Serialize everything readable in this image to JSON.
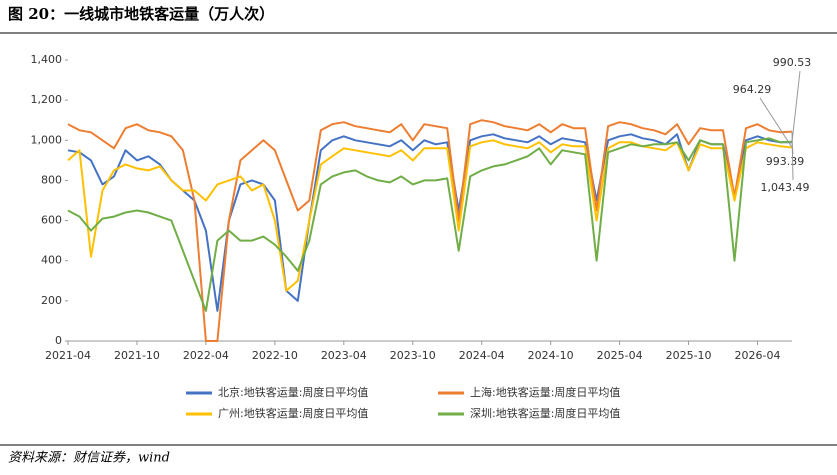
{
  "chart_data": {
    "type": "line",
    "title": "图 20：一线城市地铁客运量（万人次）",
    "source": "资料来源：财信证券，wind",
    "x": [
      "2021-04",
      "2021-05",
      "2021-06",
      "2021-07",
      "2021-08",
      "2021-09",
      "2021-10",
      "2021-11",
      "2021-12",
      "2022-01",
      "2022-02",
      "2022-03",
      "2022-04",
      "2022-05",
      "2022-06",
      "2022-07",
      "2022-08",
      "2022-09",
      "2022-10",
      "2022-11",
      "2022-12",
      "2023-01",
      "2023-02",
      "2023-03",
      "2023-04",
      "2023-05",
      "2023-06",
      "2023-07",
      "2023-08",
      "2023-09",
      "2023-10",
      "2023-11",
      "2023-12",
      "2024-01",
      "2024-02",
      "2024-03",
      "2024-04",
      "2024-05",
      "2024-06",
      "2024-07",
      "2024-08",
      "2024-09",
      "2024-10",
      "2024-11",
      "2024-12",
      "2025-01",
      "2025-02",
      "2025-03",
      "2025-04",
      "2025-05",
      "2025-06",
      "2025-07",
      "2025-08",
      "2025-09",
      "2025-10",
      "2025-11",
      "2025-12",
      "2026-01",
      "2026-02",
      "2026-03",
      "2026-04",
      "2026-05",
      "2026-06",
      "2026-07"
    ],
    "series": [
      {
        "name": "北京:地铁客运量:周度日平均值",
        "color": "#4472c4",
        "values": [
          950,
          940,
          900,
          780,
          820,
          950,
          900,
          920,
          880,
          800,
          750,
          700,
          550,
          150,
          600,
          780,
          800,
          780,
          700,
          250,
          200,
          600,
          950,
          1000,
          1020,
          1000,
          990,
          980,
          970,
          1000,
          950,
          1000,
          980,
          990,
          650,
          1000,
          1020,
          1030,
          1010,
          1000,
          990,
          1020,
          980,
          1010,
          1000,
          990,
          700,
          1000,
          1020,
          1030,
          1010,
          1000,
          980,
          1030,
          850,
          1000,
          980,
          980,
          720,
          1000,
          1020,
          1000,
          990,
          990.53
        ]
      },
      {
        "name": "上海:地铁客运量:周度日平均值",
        "color": "#ed7d31",
        "values": [
          1080,
          1050,
          1040,
          1000,
          960,
          1060,
          1080,
          1050,
          1040,
          1020,
          950,
          700,
          0,
          0,
          600,
          900,
          950,
          1000,
          950,
          800,
          650,
          700,
          1050,
          1080,
          1090,
          1070,
          1060,
          1050,
          1040,
          1080,
          1000,
          1080,
          1070,
          1060,
          600,
          1080,
          1100,
          1090,
          1070,
          1060,
          1050,
          1080,
          1040,
          1080,
          1060,
          1060,
          650,
          1070,
          1090,
          1080,
          1060,
          1050,
          1030,
          1080,
          980,
          1060,
          1050,
          1050,
          720,
          1060,
          1080,
          1050,
          1040,
          1043.49
        ]
      },
      {
        "name": "广州:地铁客运量:周度日平均值",
        "color": "#ffc000",
        "values": [
          900,
          950,
          420,
          750,
          850,
          880,
          860,
          850,
          870,
          800,
          750,
          750,
          700,
          780,
          800,
          820,
          750,
          780,
          600,
          250,
          300,
          600,
          880,
          920,
          960,
          950,
          940,
          930,
          920,
          950,
          900,
          960,
          960,
          960,
          550,
          970,
          990,
          1000,
          980,
          970,
          960,
          990,
          940,
          980,
          970,
          970,
          600,
          960,
          990,
          990,
          970,
          960,
          950,
          990,
          850,
          980,
          960,
          960,
          700,
          960,
          990,
          980,
          970,
          964.29
        ]
      },
      {
        "name": "深圳:地铁客运量:周度日平均值",
        "color": "#70ad47",
        "values": [
          650,
          620,
          550,
          610,
          620,
          640,
          650,
          640,
          620,
          600,
          450,
          300,
          150,
          500,
          550,
          500,
          500,
          520,
          480,
          420,
          350,
          500,
          780,
          820,
          840,
          850,
          820,
          800,
          790,
          820,
          780,
          800,
          800,
          810,
          450,
          820,
          850,
          870,
          880,
          900,
          920,
          960,
          880,
          950,
          940,
          930,
          400,
          940,
          960,
          980,
          970,
          980,
          980,
          990,
          900,
          1000,
          980,
          980,
          400,
          990,
          1000,
          1010,
          990,
          993.39
        ]
      }
    ],
    "annotations": [
      {
        "value": 990.53,
        "label": "990.53"
      },
      {
        "value": 964.29,
        "label": "964.29"
      },
      {
        "value": 993.39,
        "label": "993.39"
      },
      {
        "value": 1043.49,
        "label": "1,043.49"
      }
    ],
    "xlim": [
      "2021-04",
      "2026-07"
    ],
    "xticks": [
      "2021-04",
      "2021-10",
      "2022-04",
      "2022-10",
      "2023-04",
      "2023-10",
      "2024-04",
      "2024-10",
      "2025-04",
      "2025-10",
      "2026-04"
    ],
    "ylim": [
      0,
      1400
    ],
    "yticks": [
      0,
      200,
      400,
      600,
      800,
      {
        "value": 1000,
        "label": "1,000"
      },
      {
        "value": 1200,
        "label": "1,200"
      },
      {
        "value": 1400,
        "label": "1,400"
      }
    ],
    "legend": "bottom"
  }
}
